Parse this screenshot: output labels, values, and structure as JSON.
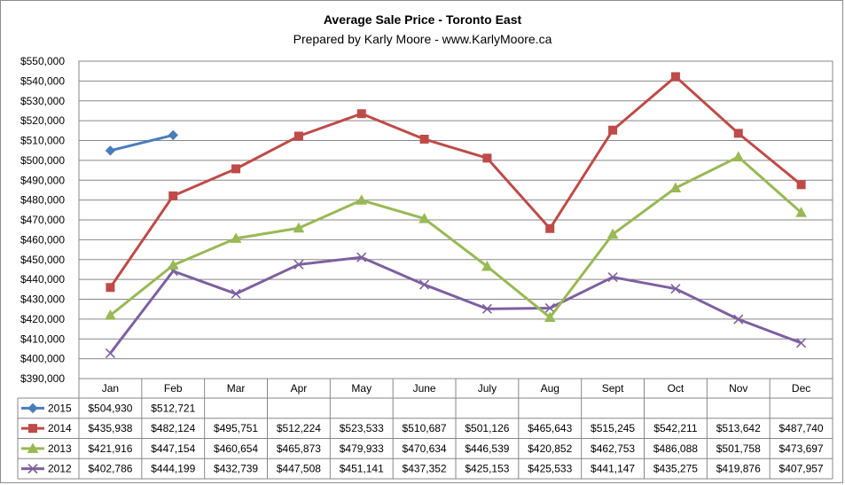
{
  "chart_data": {
    "type": "line",
    "title": "Average Sale Price - Toronto East",
    "subtitle": "Prepared by Karly Moore - www.KarlyMoore.ca",
    "categories": [
      "Jan",
      "Feb",
      "Mar",
      "Apr",
      "May",
      "June",
      "July",
      "Aug",
      "Sept",
      "Oct",
      "Nov",
      "Dec"
    ],
    "ylim": [
      390000,
      550000
    ],
    "ytick_step": 10000,
    "grid": true,
    "data_table": true,
    "series": [
      {
        "name": "2015",
        "color": "#4a7ebb",
        "marker": "diamond",
        "values": [
          504930,
          512721,
          null,
          null,
          null,
          null,
          null,
          null,
          null,
          null,
          null,
          null
        ],
        "labels": [
          "$504,930",
          "$512,721",
          "",
          "",
          "",
          "",
          "",
          "",
          "",
          "",
          "",
          ""
        ]
      },
      {
        "name": "2014",
        "color": "#be4b48",
        "marker": "square",
        "values": [
          435938,
          482124,
          495751,
          512224,
          523533,
          510687,
          501126,
          465643,
          515245,
          542211,
          513642,
          487740
        ],
        "labels": [
          "$435,938",
          "$482,124",
          "$495,751",
          "$512,224",
          "$523,533",
          "$510,687",
          "$501,126",
          "$465,643",
          "$515,245",
          "$542,211",
          "$513,642",
          "$487,740"
        ]
      },
      {
        "name": "2013",
        "color": "#98b954",
        "marker": "triangle",
        "values": [
          421916,
          447154,
          460654,
          465873,
          479933,
          470634,
          446539,
          420852,
          462753,
          486088,
          501758,
          473697
        ],
        "labels": [
          "$421,916",
          "$447,154",
          "$460,654",
          "$465,873",
          "$479,933",
          "$470,634",
          "$446,539",
          "$420,852",
          "$462,753",
          "$486,088",
          "$501,758",
          "$473,697"
        ]
      },
      {
        "name": "2012",
        "color": "#7d60a0",
        "marker": "x",
        "values": [
          402786,
          444199,
          432739,
          447508,
          451141,
          437352,
          425153,
          425533,
          441147,
          435275,
          419876,
          407957
        ],
        "labels": [
          "$402,786",
          "$444,199",
          "$432,739",
          "$447,508",
          "$451,141",
          "$437,352",
          "$425,153",
          "$425,533",
          "$441,147",
          "$435,275",
          "$419,876",
          "$407,957"
        ]
      }
    ],
    "ytick_labels": [
      "$390,000",
      "$400,000",
      "$410,000",
      "$420,000",
      "$430,000",
      "$440,000",
      "$450,000",
      "$460,000",
      "$470,000",
      "$480,000",
      "$490,000",
      "$500,000",
      "$510,000",
      "$520,000",
      "$530,000",
      "$540,000",
      "$550,000"
    ]
  }
}
